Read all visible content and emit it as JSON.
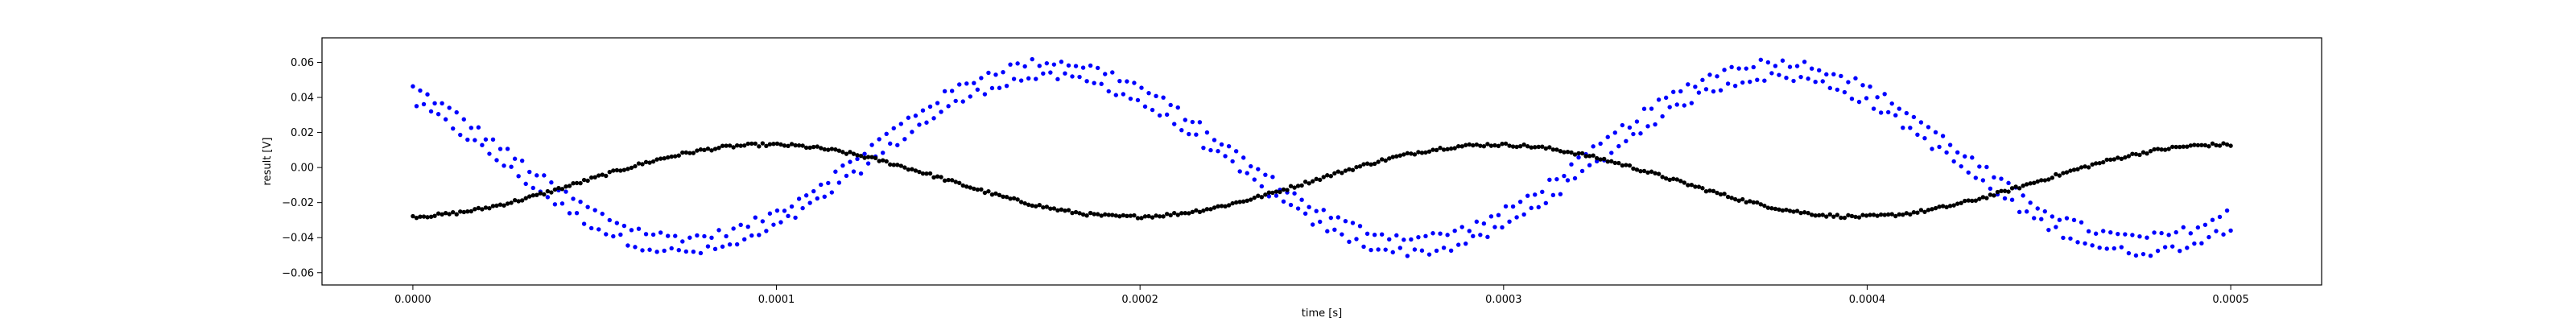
{
  "chart_data": {
    "type": "scatter",
    "title": "",
    "xlabel": "time [s]",
    "ylabel": "result [V]",
    "xlim": [
      -2.5e-05,
      0.000525
    ],
    "ylim": [
      -0.067,
      0.074
    ],
    "grid": false,
    "x_ticks": [
      0.0,
      0.0001,
      0.0002,
      0.0003,
      0.0004,
      0.0005
    ],
    "x_tick_labels": [
      "0.0000",
      "0.0001",
      "0.0002",
      "0.0003",
      "0.0004",
      "0.0005"
    ],
    "y_ticks": [
      -0.06,
      -0.04,
      -0.02,
      0.0,
      0.02,
      0.04,
      0.06
    ],
    "y_tick_labels": [
      "−0.06",
      "−0.04",
      "−0.02",
      "0.00",
      "0.02",
      "0.04",
      "0.06"
    ],
    "series": [
      {
        "color": "#0000ff",
        "marker": "dot",
        "sampling": {
          "x_start": 0.0,
          "x_end": 0.0005,
          "count": 500
        },
        "model": {
          "kind": "sine",
          "offset": 0.006,
          "amplitude": 0.05,
          "period": 0.0002,
          "peak_x": 0.000175,
          "envelope": 0.0042,
          "noise": 0.0025
        },
        "samples": [
          {
            "x": 0.0,
            "y": 0.044
          },
          {
            "x": 2.5e-05,
            "y": 0.024
          },
          {
            "x": 5e-05,
            "y": -0.012
          },
          {
            "x": 7.5e-05,
            "y": -0.041
          },
          {
            "x": 0.0001,
            "y": -0.042
          },
          {
            "x": 0.000125,
            "y": -0.011
          },
          {
            "x": 0.00015,
            "y": 0.038
          },
          {
            "x": 0.000175,
            "y": 0.06
          },
          {
            "x": 0.0002,
            "y": 0.043
          },
          {
            "x": 0.000225,
            "y": 0.0
          },
          {
            "x": 0.00025,
            "y": -0.037
          },
          {
            "x": 0.000275,
            "y": -0.048
          },
          {
            "x": 0.0003,
            "y": -0.027
          },
          {
            "x": 0.000325,
            "y": 0.012
          },
          {
            "x": 0.00035,
            "y": 0.044
          },
          {
            "x": 0.000375,
            "y": 0.06
          },
          {
            "x": 0.0004,
            "y": 0.038
          },
          {
            "x": 0.000425,
            "y": 0.003
          },
          {
            "x": 0.00045,
            "y": -0.031
          },
          {
            "x": 0.000475,
            "y": -0.046
          },
          {
            "x": 0.0005,
            "y": -0.038
          }
        ]
      },
      {
        "color": "#000000",
        "marker": "dot",
        "sampling": {
          "x_start": 0.0,
          "x_end": 0.0005,
          "count": 500
        },
        "model": {
          "kind": "sine",
          "offset": -0.0075,
          "amplitude": 0.0205,
          "period": 0.0002,
          "peak_x": 9.75e-05,
          "envelope": 0.0,
          "noise": 0.0009
        },
        "samples": [
          {
            "x": 0.0,
            "y": -0.028
          },
          {
            "x": 2.5e-05,
            "y": -0.024
          },
          {
            "x": 5e-05,
            "y": -0.013
          },
          {
            "x": 7.5e-05,
            "y": 0.001
          },
          {
            "x": 0.0001,
            "y": 0.013
          },
          {
            "x": 0.000125,
            "y": 0.006
          },
          {
            "x": 0.00015,
            "y": -0.013
          },
          {
            "x": 0.000175,
            "y": -0.025
          },
          {
            "x": 0.0002,
            "y": -0.028
          },
          {
            "x": 0.000225,
            "y": -0.02
          },
          {
            "x": 0.00025,
            "y": -0.005
          },
          {
            "x": 0.000275,
            "y": 0.008
          },
          {
            "x": 0.0003,
            "y": 0.013
          },
          {
            "x": 0.000325,
            "y": 0.004
          },
          {
            "x": 0.00035,
            "y": -0.016
          },
          {
            "x": 0.000375,
            "y": -0.025
          },
          {
            "x": 0.0004,
            "y": -0.027
          },
          {
            "x": 0.000425,
            "y": -0.018
          },
          {
            "x": 0.00045,
            "y": -0.002
          },
          {
            "x": 0.000475,
            "y": 0.009
          },
          {
            "x": 0.0005,
            "y": 0.013
          }
        ]
      }
    ]
  }
}
